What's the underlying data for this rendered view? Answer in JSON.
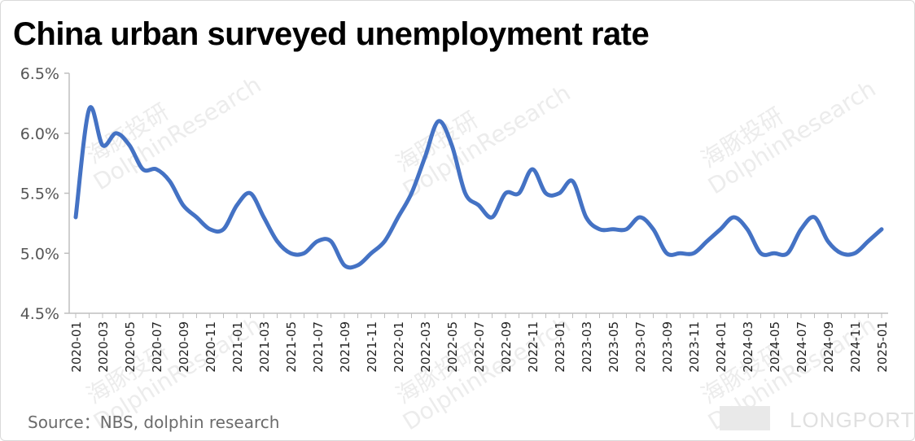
{
  "title": "China urban surveyed unemployment rate",
  "source": "Source：NBS, dolphin research",
  "watermark": "DolphinResearch",
  "watermark_cn": "海豚投研",
  "brand": "LONGPORT",
  "colors": {
    "line": "#4472C4",
    "axis": "#bfbfbf"
  },
  "chart_data": {
    "type": "line",
    "title": "China urban surveyed unemployment rate",
    "xlabel": "",
    "ylabel": "",
    "ylim": [
      4.5,
      6.5
    ],
    "yticks": [
      4.5,
      5.0,
      5.5,
      6.0,
      6.5
    ],
    "ytick_labels": [
      "4.5%",
      "5.0%",
      "5.5%",
      "6.0%",
      "6.5%"
    ],
    "grid": false,
    "x": [
      "2020-01",
      "2020-02",
      "2020-03",
      "2020-04",
      "2020-05",
      "2020-06",
      "2020-07",
      "2020-08",
      "2020-09",
      "2020-10",
      "2020-11",
      "2020-12",
      "2021-01",
      "2021-02",
      "2021-03",
      "2021-04",
      "2021-05",
      "2021-06",
      "2021-07",
      "2021-08",
      "2021-09",
      "2021-10",
      "2021-11",
      "2021-12",
      "2022-01",
      "2022-02",
      "2022-03",
      "2022-04",
      "2022-05",
      "2022-06",
      "2022-07",
      "2022-08",
      "2022-09",
      "2022-10",
      "2022-11",
      "2022-12",
      "2023-01",
      "2023-02",
      "2023-03",
      "2023-04",
      "2023-05",
      "2023-06",
      "2023-07",
      "2023-08",
      "2023-09",
      "2023-10",
      "2023-11",
      "2023-12",
      "2024-01",
      "2024-02",
      "2024-03",
      "2024-04",
      "2024-05",
      "2024-06",
      "2024-07",
      "2024-08",
      "2024-09",
      "2024-10",
      "2024-11",
      "2024-12",
      "2025-01"
    ],
    "xtick_labels": [
      "2020-01",
      "2020-03",
      "2020-05",
      "2020-07",
      "2020-09",
      "2020-11",
      "2021-01",
      "2021-03",
      "2021-05",
      "2021-07",
      "2021-09",
      "2021-11",
      "2022-01",
      "2022-03",
      "2022-05",
      "2022-07",
      "2022-09",
      "2022-11",
      "2023-01",
      "2023-03",
      "2023-05",
      "2023-07",
      "2023-09",
      "2023-11",
      "2024-01",
      "2024-03",
      "2024-05",
      "2024-07",
      "2024-09",
      "2024-11",
      "2025-01"
    ],
    "series": [
      {
        "values": [
          5.3,
          6.2,
          5.9,
          6.0,
          5.9,
          5.7,
          5.7,
          5.6,
          5.4,
          5.3,
          5.2,
          5.2,
          5.4,
          5.5,
          5.3,
          5.1,
          5.0,
          5.0,
          5.1,
          5.1,
          4.9,
          4.9,
          5.0,
          5.1,
          5.3,
          5.5,
          5.8,
          6.1,
          5.9,
          5.5,
          5.4,
          5.3,
          5.5,
          5.5,
          5.7,
          5.5,
          5.5,
          5.6,
          5.3,
          5.2,
          5.2,
          5.2,
          5.3,
          5.2,
          5.0,
          5.0,
          5.0,
          5.1,
          5.2,
          5.3,
          5.2,
          5.0,
          5.0,
          5.0,
          5.2,
          5.3,
          5.1,
          5.0,
          5.0,
          5.1,
          5.2
        ]
      }
    ]
  }
}
